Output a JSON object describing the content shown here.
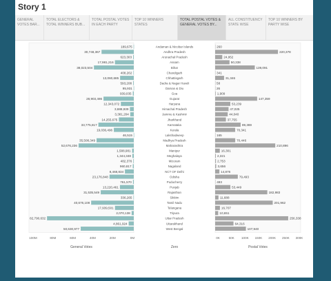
{
  "story": {
    "title": "Story 1"
  },
  "tabs": [
    {
      "label": "GENERAL VOTES BAR..."
    },
    {
      "label": "TOTAL ELECTORS & TOTAL WINNERS BUB..."
    },
    {
      "label": "TOTAL POSTAL VOTES IN EACH PARTY"
    },
    {
      "label": "TOP 10 WINNERS STATES"
    },
    {
      "label": "TOTAL POSTAL VOTES & GENERAL VOTES BY..."
    },
    {
      "label": "ALL CONSTITUENCY STATE WISE"
    },
    {
      "label": "TOP 10 WINNERS BY PARTY WISE"
    }
  ],
  "colors": {
    "general_bar": "#8fbfbf",
    "postal_bar": "#a5a5a5",
    "background": "#1f5b73"
  },
  "chart_data": {
    "type": "bar",
    "categories": [
      "Andaman & Nicobar Islands",
      "Andhra Pradesh",
      "Arunachal Pradesh",
      "Assam",
      "Bihar",
      "Chandigarh",
      "Chhattisgarh",
      "Dadra & Nagar Haveli",
      "Daman & Diu",
      "Goa",
      "Gujarat",
      "Haryana",
      "Himachal Pradesh",
      "Jammu & Kashmir",
      "Jharkhand",
      "Karnataka",
      "Kerala",
      "Lakshadweep",
      "Madhya Pradesh",
      "Maharashtra",
      "Manipur",
      "Meghalaya",
      "Mizoram",
      "Nagaland",
      "NCT OF Delhi",
      "Odisha",
      "Puducherry",
      "Punjab",
      "Rajasthan",
      "Sikkim",
      "Tamil Nadu",
      "Telangana",
      "Tripura",
      "Uttar Pradesh",
      "Uttarakhand",
      "West Bengal"
    ],
    "series": [
      {
        "name": "General Votes",
        "labels": [
          "189,675",
          "30,748,367",
          "623,303",
          "17,981,216",
          "38,023,504",
          "408,262",
          "13,060,685",
          "593,208",
          "95,931",
          "939,035",
          "28,903,486",
          "12,343,072",
          "3,688,939",
          "3,381,204",
          "14,255,675",
          "33,775,817",
          "19,036,496",
          "46,515",
          "35,508,349",
          "52,676,236",
          "1,588,981",
          "1,344,348",
          "482,376",
          "960,817",
          "8,468,834",
          "23,176,848",
          "761,570",
          "13,220,461",
          "31,535,549",
          "336,265",
          "40,676,108",
          "17,939,501",
          "2,070,138",
          "82,790,632",
          "4,861,924",
          "50,630,977"
        ],
        "values": [
          189675,
          30748367,
          623303,
          17981216,
          38023504,
          408262,
          13060685,
          593208,
          95931,
          939035,
          28903486,
          12343072,
          3688939,
          3381204,
          14255675,
          33775817,
          19036496,
          46515,
          35508349,
          52676236,
          1588981,
          1344348,
          482376,
          960817,
          8468834,
          23176848,
          761570,
          13220461,
          31535549,
          336265,
          40676108,
          17939501,
          2070138,
          82790632,
          4861924,
          50630977
        ]
      },
      {
        "name": "Postal Votes",
        "labels": [
          "260",
          "220,378",
          "24,952",
          "50,338",
          "139,091",
          "341",
          "31,346",
          "58",
          "26",
          "1,909",
          "147,359",
          "53,239",
          "47,025",
          "44,040",
          "37,755",
          "89,369",
          "70,341",
          "165",
          "70,446",
          "210,896",
          "16,301",
          "2,321",
          "2,753",
          "3,656",
          "14,876",
          "79,493",
          "493",
          "53,449",
          "182,983",
          "11,688",
          "201,962",
          "16,707",
          "10,651",
          "256,338",
          "64,316",
          "107,940"
        ],
        "values": [
          260,
          220378,
          24952,
          50338,
          139091,
          341,
          31346,
          58,
          26,
          1909,
          147359,
          53239,
          47025,
          44040,
          37755,
          89369,
          70341,
          165,
          70446,
          210896,
          16301,
          2321,
          2753,
          3656,
          14876,
          79493,
          493,
          53449,
          182983,
          11688,
          201962,
          16707,
          10651,
          256338,
          64316,
          107940
        ]
      }
    ],
    "left_axis": {
      "ticks": [
        "100M",
        "80M",
        "60M",
        "40M",
        "20M",
        "0M"
      ],
      "max": 100000000,
      "label": "General Votes"
    },
    "center_axis": {
      "label": "Zero"
    },
    "right_axis": {
      "ticks": [
        "0K",
        "50K",
        "100K",
        "150K",
        "200K",
        "250K",
        "300K"
      ],
      "max": 300000,
      "label": "Postal Votes"
    }
  }
}
